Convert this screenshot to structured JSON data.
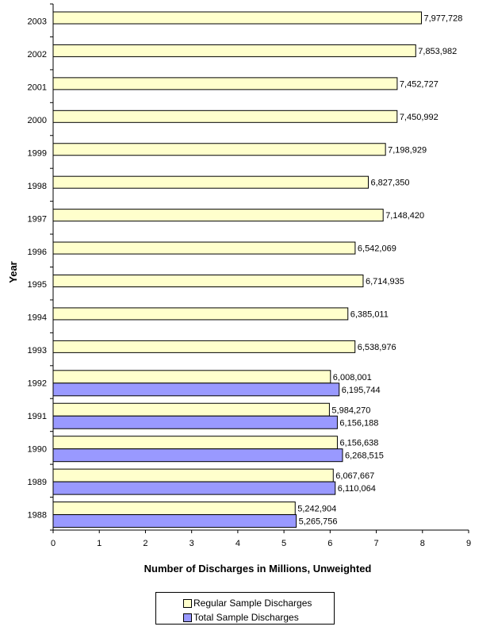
{
  "chart_data": {
    "type": "bar",
    "orientation": "horizontal",
    "categories": [
      "2003",
      "2002",
      "2001",
      "2000",
      "1999",
      "1998",
      "1997",
      "1996",
      "1995",
      "1994",
      "1993",
      "1992",
      "1991",
      "1990",
      "1989",
      "1988"
    ],
    "series": [
      {
        "name": "Regular Sample Discharges",
        "color": "#ffffcc",
        "values": [
          7977728,
          7853982,
          7452727,
          7450992,
          7198929,
          6827350,
          7148420,
          6542069,
          6714935,
          6385011,
          6538976,
          6008001,
          5984270,
          6156638,
          6067667,
          5242904
        ],
        "labels": [
          "7,977,728",
          "7,853,982",
          "7,452,727",
          "7,450,992",
          "7,198,929",
          "6,827,350",
          "7,148,420",
          "6,542,069",
          "6,714,935",
          "6,385,011",
          "6,538,976",
          "6,008,001",
          "5,984,270",
          "6,156,638",
          "6,067,667",
          "5,242,904"
        ]
      },
      {
        "name": "Total Sample Discharges",
        "color": "#9999ff",
        "values": [
          null,
          null,
          null,
          null,
          null,
          null,
          null,
          null,
          null,
          null,
          null,
          6195744,
          6156188,
          6268515,
          6110064,
          5265756
        ],
        "labels": [
          null,
          null,
          null,
          null,
          null,
          null,
          null,
          null,
          null,
          null,
          null,
          "6,195,744",
          "6,156,188",
          "6,268,515",
          "6,110,064",
          "5,265,756"
        ]
      }
    ],
    "xlabel": "Number of Discharges in Millions, Unweighted",
    "ylabel": "Year",
    "xlim": [
      0,
      9
    ],
    "xticks": [
      "0",
      "1",
      "2",
      "3",
      "4",
      "5",
      "6",
      "7",
      "8",
      "9"
    ],
    "grid": false,
    "legend_position": "bottom"
  }
}
